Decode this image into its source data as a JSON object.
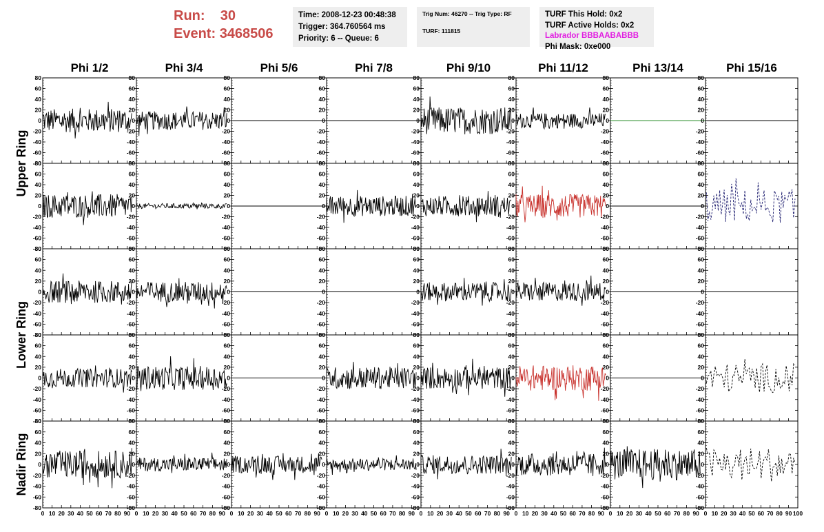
{
  "header": {
    "run_label": "Run:",
    "run_value": "30",
    "event_label": "Event:",
    "event_value": "3468506"
  },
  "info_time": {
    "time": "Time: 2008-12-23 00:48:38",
    "trigger": "Trigger: 364.760564 ms",
    "priority": "Priority: 6 -- Queue: 6"
  },
  "info_trig": {
    "trig": "Trig Num: 46270 -- Trig Type: RF",
    "turf": "TURF: 111815"
  },
  "info_turf": {
    "hold": "TURF This Hold: 0x2",
    "active": "TURF Active Holds: 0x2",
    "labrador": "Labrador BBBAABABBB",
    "phimask": "Phi Mask: 0xe000"
  },
  "colors": {
    "run_text": "#c84b48",
    "labrador": "#e11ee1",
    "trace_default": "#000000",
    "trace_red": "#c8312c",
    "trace_green": "#2a8c2a",
    "trace_blue": "#1c1c6e"
  },
  "chart_data": {
    "type": "line",
    "columns": [
      "Phi 1/2",
      "Phi 3/4",
      "Phi 5/6",
      "Phi 7/8",
      "Phi 9/10",
      "Phi 11/12",
      "Phi 13/14",
      "Phi 15/16"
    ],
    "ring_labels": [
      "Upper Ring",
      "Lower Ring",
      "Nadir Ring"
    ],
    "ylim": [
      -80,
      80
    ],
    "yticks": [
      -80,
      -60,
      -40,
      -20,
      0,
      20,
      40,
      60,
      80
    ],
    "xlim": [
      0,
      100
    ],
    "xticks": [
      0,
      10,
      20,
      30,
      40,
      50,
      60,
      70,
      80,
      90,
      100
    ],
    "rows": [
      {
        "ring": "Upper Ring",
        "cells": [
          {
            "kind": "noise",
            "amp": 14,
            "color": "black"
          },
          {
            "kind": "noise",
            "amp": 11,
            "color": "black"
          },
          {
            "kind": "flat",
            "color": "black"
          },
          {
            "kind": "flat",
            "color": "black"
          },
          {
            "kind": "noise",
            "amp": 16,
            "color": "black"
          },
          {
            "kind": "noise",
            "amp": 9,
            "color": "black"
          },
          {
            "kind": "flat",
            "color": "green"
          },
          {
            "kind": "flat",
            "color": "black"
          }
        ]
      },
      {
        "ring": "Upper Ring",
        "cells": [
          {
            "kind": "noise",
            "amp": 14,
            "color": "black"
          },
          {
            "kind": "noise",
            "amp": 3,
            "color": "black"
          },
          {
            "kind": "flat",
            "color": "black"
          },
          {
            "kind": "noise",
            "amp": 12,
            "color": "black"
          },
          {
            "kind": "noise",
            "amp": 12,
            "color": "black"
          },
          {
            "kind": "noise",
            "amp": 14,
            "color": "red"
          },
          {
            "kind": "flat",
            "color": "black"
          },
          {
            "kind": "dashed",
            "amp": 20,
            "color": "blue"
          }
        ]
      },
      {
        "ring": "Lower Ring",
        "cells": [
          {
            "kind": "noise",
            "amp": 13,
            "color": "black"
          },
          {
            "kind": "noise",
            "amp": 12,
            "color": "black"
          },
          {
            "kind": "flat",
            "color": "black"
          },
          {
            "kind": "flat",
            "color": "black"
          },
          {
            "kind": "noise",
            "amp": 11,
            "color": "black"
          },
          {
            "kind": "noise",
            "amp": 11,
            "color": "black"
          },
          {
            "kind": "flat",
            "color": "black"
          },
          {
            "kind": "flat",
            "color": "black"
          }
        ]
      },
      {
        "ring": "Lower Ring",
        "cells": [
          {
            "kind": "noise",
            "amp": 11,
            "color": "black"
          },
          {
            "kind": "noise",
            "amp": 14,
            "color": "black"
          },
          {
            "kind": "flat",
            "color": "black"
          },
          {
            "kind": "noise",
            "amp": 13,
            "color": "black"
          },
          {
            "kind": "noise",
            "amp": 13,
            "color": "black"
          },
          {
            "kind": "noise",
            "amp": 15,
            "color": "red"
          },
          {
            "kind": "flat",
            "color": "black"
          },
          {
            "kind": "dashed",
            "amp": 17,
            "color": "black"
          }
        ]
      },
      {
        "ring": "Nadir Ring",
        "cells": [
          {
            "kind": "noise",
            "amp": 16,
            "color": "black"
          },
          {
            "kind": "noise",
            "amp": 8,
            "color": "black"
          },
          {
            "kind": "noise",
            "amp": 10,
            "color": "black"
          },
          {
            "kind": "noise",
            "amp": 7,
            "color": "black"
          },
          {
            "kind": "noise",
            "amp": 11,
            "color": "black"
          },
          {
            "kind": "noise",
            "amp": 13,
            "color": "black"
          },
          {
            "kind": "noise",
            "amp": 18,
            "color": "black"
          },
          {
            "kind": "dashed",
            "amp": 20,
            "color": "black"
          }
        ]
      }
    ]
  }
}
